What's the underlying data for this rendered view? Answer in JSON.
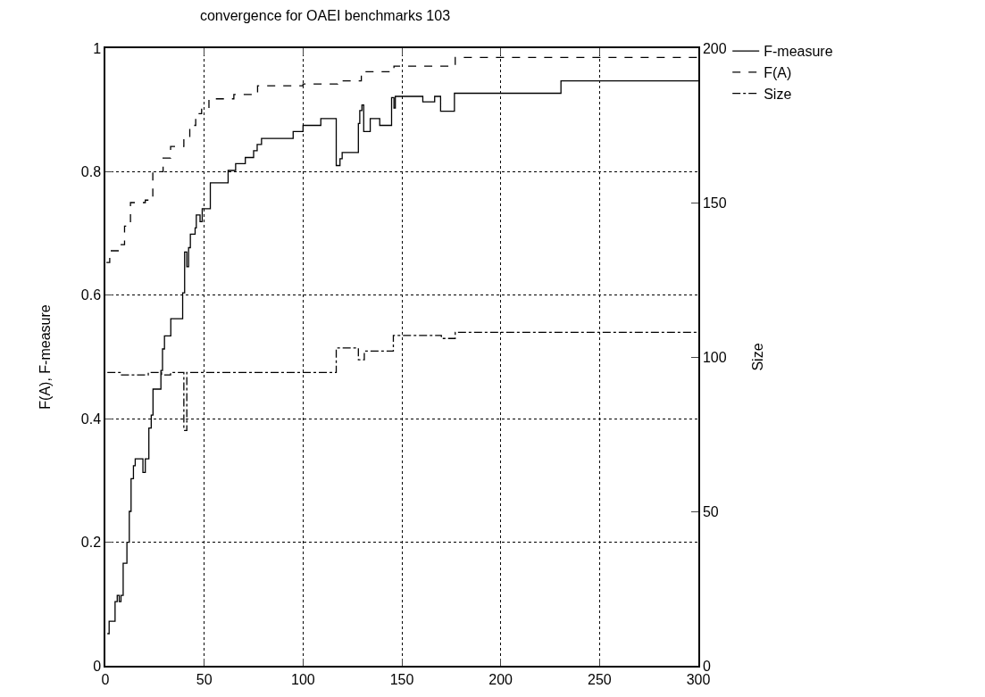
{
  "chart_data": {
    "type": "step",
    "title": "convergence for OAEI benchmarks 103",
    "ylabel": "F(A), F-measure",
    "y2label": "Size",
    "xlim": [
      0,
      300
    ],
    "xticks": [
      0,
      50,
      100,
      150,
      200,
      250,
      300
    ],
    "ylim": [
      0,
      1
    ],
    "yticks": [
      0,
      0.2,
      0.4,
      0.6,
      0.8,
      1
    ],
    "y2lim": [
      0,
      200
    ],
    "y2ticks": [
      0,
      50,
      100,
      150,
      200
    ],
    "grid": true,
    "legend": "top right",
    "marker": "none",
    "series": [
      {
        "name": "F-measure",
        "color": "#000000",
        "line_style": "solid",
        "x": [
          1,
          1.9,
          4.9,
          6,
          7,
          7.9,
          9,
          10.9,
          12.1,
          13,
          14.2,
          15.1,
          19,
          20.2,
          22,
          23.2,
          24.1,
          28.1,
          28.9,
          29.9,
          33.1,
          39.1,
          40.1,
          41.2,
          42.1,
          43,
          45.4,
          46,
          47.9,
          49,
          53.1,
          62.1,
          65.9,
          70.8,
          75,
          76.8,
          79,
          95,
          100,
          109,
          116.8,
          118.7,
          119.8,
          128,
          128.7,
          129.8,
          130.7,
          134,
          138.8,
          144.8,
          146,
          146.7,
          160.6,
          166.6,
          169.6,
          176.6,
          230.5,
          300
        ],
        "values": [
          0.052,
          0.072,
          0.104,
          0.114,
          0.104,
          0.114,
          0.166,
          0.2,
          0.25,
          0.303,
          0.324,
          0.335,
          0.313,
          0.335,
          0.385,
          0.406,
          0.448,
          0.478,
          0.513,
          0.534,
          0.562,
          0.604,
          0.67,
          0.646,
          0.677,
          0.699,
          0.709,
          0.73,
          0.719,
          0.74,
          0.782,
          0.802,
          0.813,
          0.823,
          0.834,
          0.844,
          0.854,
          0.865,
          0.875,
          0.886,
          0.81,
          0.821,
          0.831,
          0.878,
          0.899,
          0.908,
          0.865,
          0.886,
          0.875,
          0.92,
          0.903,
          0.922,
          0.913,
          0.922,
          0.898,
          0.927,
          0.947,
          0.947
        ]
      },
      {
        "name": "F(A)",
        "color": "#000000",
        "line_style": "dashed",
        "x": [
          0.5,
          2.2,
          7.5,
          9.7,
          12.7,
          20.2,
          24,
          29.2,
          33,
          39.7,
          42.7,
          45.7,
          48.7,
          52.4,
          65,
          77,
          100,
          117.5,
          129.5,
          146,
          177,
          300
        ],
        "values": [
          0.653,
          0.672,
          0.682,
          0.712,
          0.75,
          0.754,
          0.8,
          0.822,
          0.841,
          0.853,
          0.875,
          0.894,
          0.901,
          0.918,
          0.925,
          0.939,
          0.942,
          0.947,
          0.962,
          0.971,
          0.985,
          0.985
        ]
      },
      {
        "name": "Size",
        "color": "#000000",
        "line_style": "dashdot",
        "axis": "y2",
        "x": [
          1,
          7.5,
          21.7,
          28.4,
          33,
          39.7,
          41.2,
          116.8,
          128,
          131,
          145.7,
          170,
          177,
          300
        ],
        "values": [
          95,
          94.2,
          95,
          94.2,
          95,
          76.2,
          95,
          102.9,
          99.1,
          101.9,
          107,
          106,
          108,
          108
        ]
      }
    ]
  }
}
